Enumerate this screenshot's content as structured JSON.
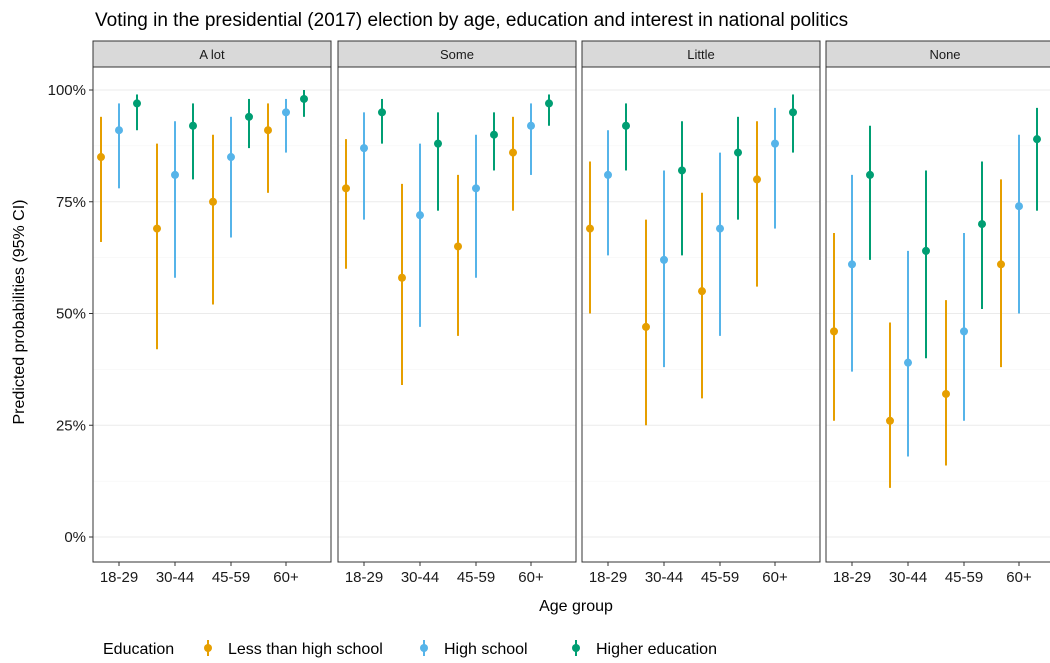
{
  "chart_data": {
    "type": "scatter",
    "title": "Voting in the presidential (2017) election by age, education and interest in national politics",
    "xlabel": "Age group",
    "ylabel": "Predicted probabilities (95% CI)",
    "ylim": [
      0,
      100
    ],
    "y_ticks": [
      "0%",
      "25%",
      "50%",
      "75%",
      "100%"
    ],
    "y_tick_values": [
      0,
      25,
      50,
      75,
      100
    ],
    "categories": [
      "18-29",
      "30-44",
      "45-59",
      "60+"
    ],
    "grid": true,
    "legend": {
      "position": "bottom",
      "title": "Education",
      "entries": [
        {
          "name": "Less than high school",
          "color": "#E69F00"
        },
        {
          "name": "High school",
          "color": "#56B4E9"
        },
        {
          "name": "Higher education",
          "color": "#009E73"
        }
      ]
    },
    "panels": [
      {
        "label": "A lot",
        "series": [
          {
            "name": "Less than high school",
            "estimate": [
              85,
              69,
              75,
              91
            ],
            "lower": [
              66,
              42,
              52,
              77
            ],
            "upper": [
              94,
              88,
              90,
              97
            ]
          },
          {
            "name": "High school",
            "estimate": [
              91,
              81,
              85,
              95
            ],
            "lower": [
              78,
              58,
              67,
              86
            ],
            "upper": [
              97,
              93,
              94,
              98
            ]
          },
          {
            "name": "Higher education",
            "estimate": [
              97,
              92,
              94,
              98
            ],
            "lower": [
              91,
              80,
              87,
              94
            ],
            "upper": [
              99,
              97,
              98,
              100
            ]
          }
        ]
      },
      {
        "label": "Some",
        "series": [
          {
            "name": "Less than high school",
            "estimate": [
              78,
              58,
              65,
              86
            ],
            "lower": [
              60,
              34,
              45,
              73
            ],
            "upper": [
              89,
              79,
              81,
              94
            ]
          },
          {
            "name": "High school",
            "estimate": [
              87,
              72,
              78,
              92
            ],
            "lower": [
              71,
              47,
              58,
              81
            ],
            "upper": [
              95,
              88,
              90,
              97
            ]
          },
          {
            "name": "Higher education",
            "estimate": [
              95,
              88,
              90,
              97
            ],
            "lower": [
              88,
              73,
              82,
              92
            ],
            "upper": [
              98,
              95,
              95,
              99
            ]
          }
        ]
      },
      {
        "label": "Little",
        "series": [
          {
            "name": "Less than high school",
            "estimate": [
              69,
              47,
              55,
              80
            ],
            "lower": [
              50,
              25,
              31,
              56
            ],
            "upper": [
              84,
              71,
              77,
              93
            ]
          },
          {
            "name": "High school",
            "estimate": [
              81,
              62,
              69,
              88
            ],
            "lower": [
              63,
              38,
              45,
              69
            ],
            "upper": [
              91,
              82,
              86,
              96
            ]
          },
          {
            "name": "Higher education",
            "estimate": [
              92,
              82,
              86,
              95
            ],
            "lower": [
              82,
              63,
              71,
              86
            ],
            "upper": [
              97,
              93,
              94,
              99
            ]
          }
        ]
      },
      {
        "label": "None",
        "series": [
          {
            "name": "Less than high school",
            "estimate": [
              46,
              26,
              32,
              61
            ],
            "lower": [
              26,
              11,
              16,
              38
            ],
            "upper": [
              68,
              48,
              53,
              80
            ]
          },
          {
            "name": "High school",
            "estimate": [
              61,
              39,
              46,
              74
            ],
            "lower": [
              37,
              18,
              26,
              50
            ],
            "upper": [
              81,
              64,
              68,
              90
            ]
          },
          {
            "name": "Higher education",
            "estimate": [
              81,
              64,
              70,
              89
            ],
            "lower": [
              62,
              40,
              51,
              73
            ],
            "upper": [
              92,
              82,
              84,
              96
            ]
          }
        ]
      }
    ]
  }
}
